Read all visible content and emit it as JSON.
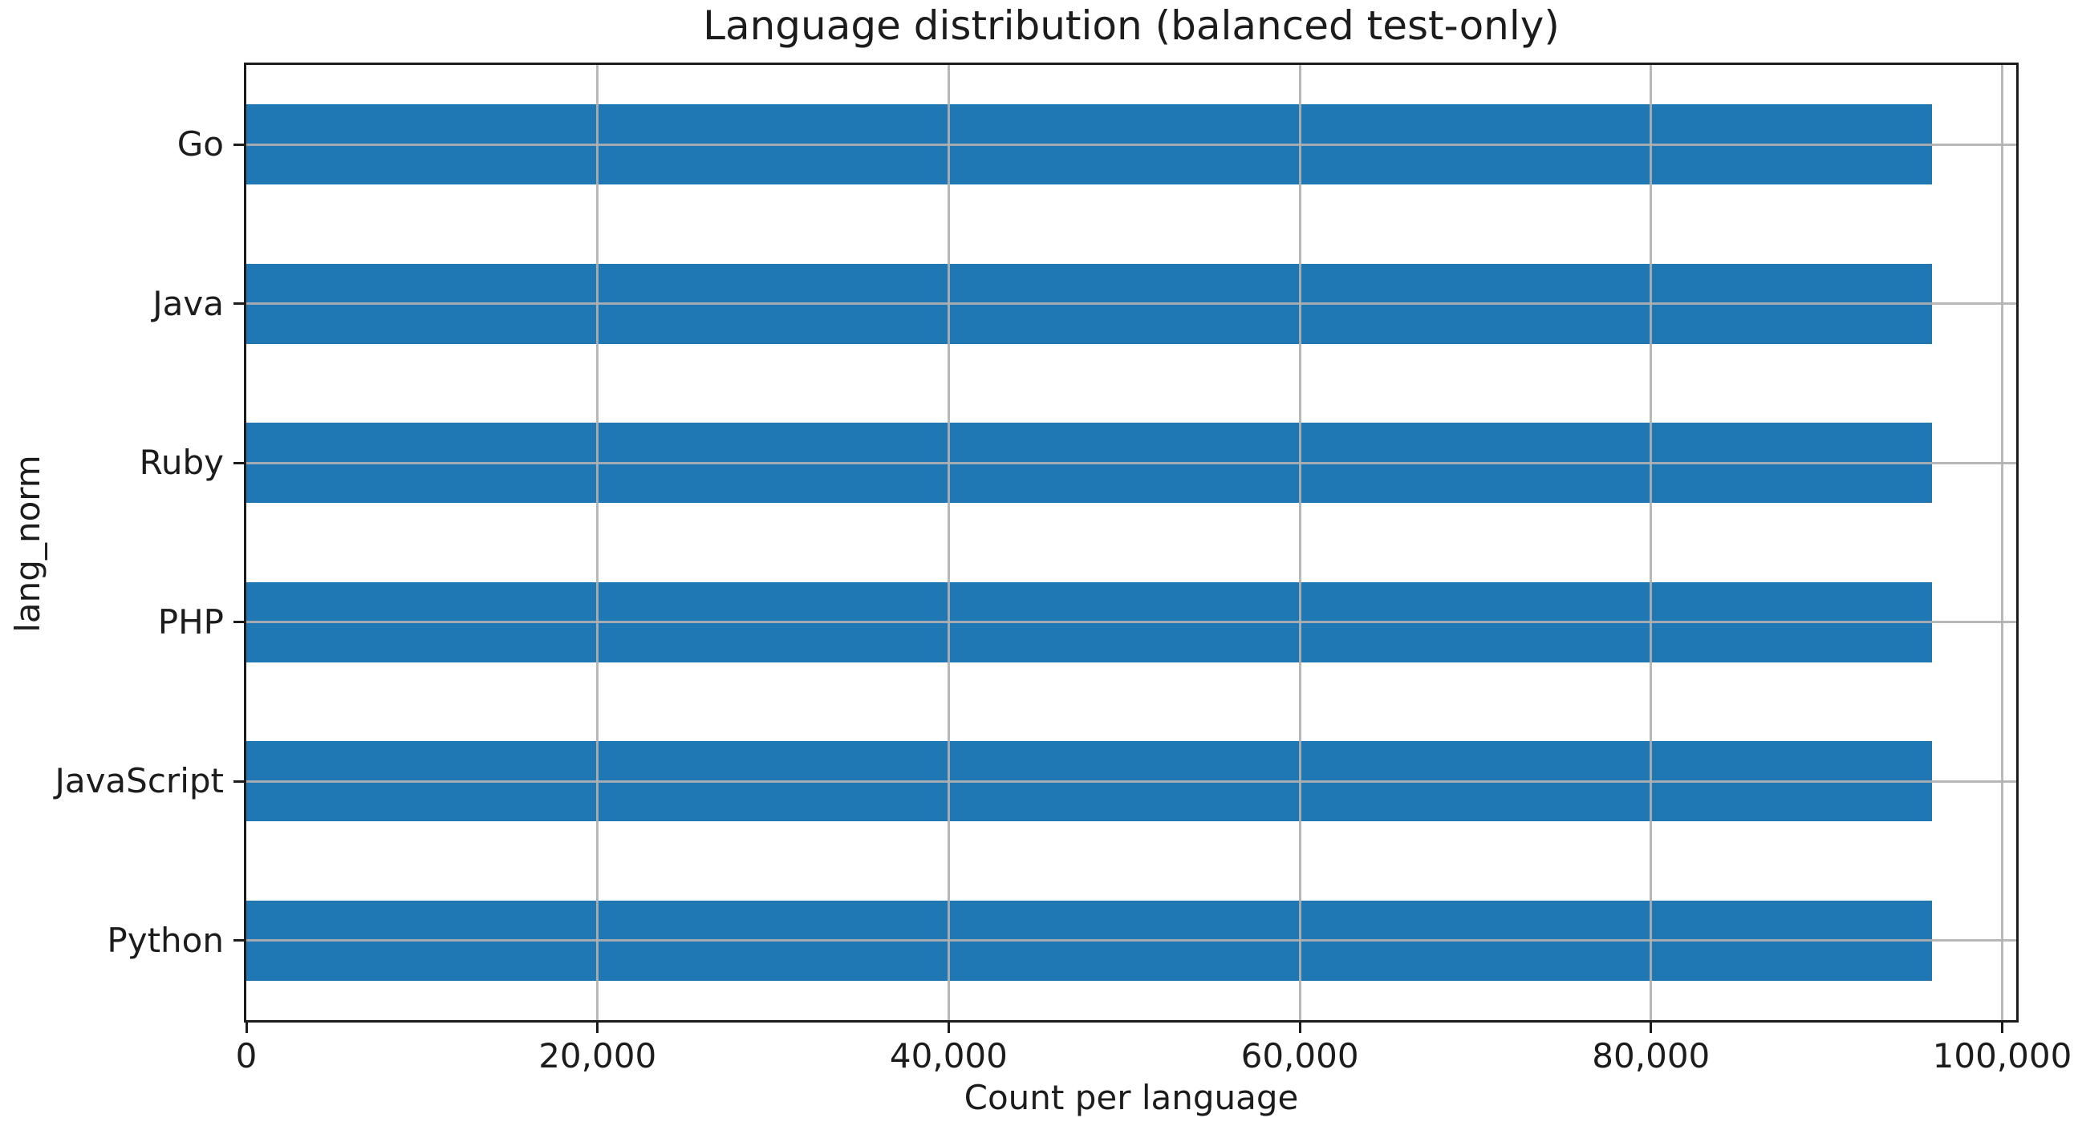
{
  "chart_data": {
    "type": "bar",
    "orientation": "horizontal",
    "title": "Language distribution (balanced test-only)",
    "xlabel": "Count per language",
    "ylabel": "lang_norm",
    "categories": [
      "Go",
      "Java",
      "Ruby",
      "PHP",
      "JavaScript",
      "Python"
    ],
    "values": [
      96000,
      96000,
      96000,
      96000,
      96000,
      96000
    ],
    "x_ticks": [
      0,
      20000,
      40000,
      60000,
      80000,
      100000
    ],
    "x_tick_labels": [
      "0",
      "20,000",
      "40,000",
      "60,000",
      "80,000",
      "100,000"
    ],
    "xlim": [
      0,
      100800
    ],
    "grid": true,
    "legend_position": "none",
    "bar_color": "#1f77b4",
    "grid_color": "#b0b0b0",
    "axis_color": "#1c1c1c",
    "background_color": "#ffffff"
  }
}
